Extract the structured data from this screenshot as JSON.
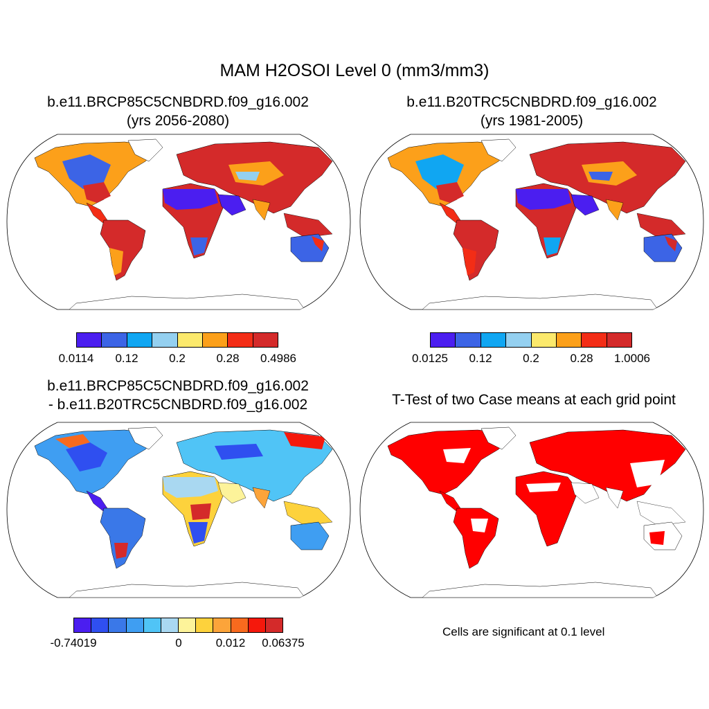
{
  "main_title": "MAM H2OSOI Level 0 (mm3/mm3)",
  "panels": [
    {
      "title_line1": "b.e11.BRCP85C5CNBDRD.f09_g16.002",
      "title_line2": "(yrs 2056-2080)",
      "colorbar": {
        "colors": [
          "#4b1ef0",
          "#3c64e6",
          "#10a6f2",
          "#94d0f0",
          "#fbe96c",
          "#fca01a",
          "#f32d16",
          "#d42a2a"
        ],
        "labels": [
          "0.0114",
          "0.12",
          "0.2",
          "0.28",
          "0.4986"
        ]
      }
    },
    {
      "title_line1": "b.e11.B20TRC5CNBDRD.f09_g16.002",
      "title_line2": "(yrs 1981-2005)",
      "colorbar": {
        "colors": [
          "#4b1ef0",
          "#3c64e6",
          "#10a6f2",
          "#94d0f0",
          "#fbe96c",
          "#fca01a",
          "#f32d16",
          "#d42a2a"
        ],
        "labels": [
          "0.0125",
          "0.12",
          "0.2",
          "0.28",
          "1.0006"
        ]
      }
    },
    {
      "title_line1": "b.e11.BRCP85C5CNBDRD.f09_g16.002",
      "title_line2": "- b.e11.B20TRC5CNBDRD.f09_g16.002",
      "colorbar": {
        "colors": [
          "#4b1ef0",
          "#2f4ff0",
          "#3a78e8",
          "#3f9ef2",
          "#50c4f6",
          "#a9d8f1",
          "#fdf39a",
          "#fdd23c",
          "#fca43a",
          "#f86a1e",
          "#f5180c",
          "#d42a2a"
        ],
        "labels": [
          "-0.74019",
          "0",
          "0.012",
          "0.06375"
        ]
      }
    },
    {
      "title_line1": "T-Test of two Case means at each grid point",
      "note": "Cells are significant at 0.1 level"
    }
  ]
}
